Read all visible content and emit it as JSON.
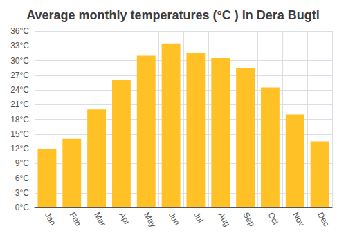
{
  "chart_data": {
    "type": "bar",
    "title": "Average monthly temperatures (°C ) in Dera Bugti",
    "categories": [
      "Jan",
      "Feb",
      "Mar",
      "Apr",
      "May",
      "Jun",
      "Jul",
      "Aug",
      "Sep",
      "Oct",
      "Nov",
      "Dec"
    ],
    "values": [
      12,
      14,
      20,
      26,
      31,
      33.5,
      31.5,
      30.5,
      28.5,
      24.5,
      19,
      13.5
    ],
    "color": "#FFC125",
    "ylim": [
      0,
      36
    ],
    "yticks": [
      {
        "value": 0,
        "label": "0°C"
      },
      {
        "value": 3,
        "label": "3°C"
      },
      {
        "value": 6,
        "label": "6°C"
      },
      {
        "value": 9,
        "label": "9°C"
      },
      {
        "value": 12,
        "label": "12°C"
      },
      {
        "value": 15,
        "label": "15°C"
      },
      {
        "value": 18,
        "label": "18°C"
      },
      {
        "value": 21,
        "label": "21°C"
      },
      {
        "value": 24,
        "label": "24°C"
      },
      {
        "value": 27,
        "label": "27°C"
      },
      {
        "value": 30,
        "label": "30°C"
      },
      {
        "value": 33,
        "label": "33°C"
      },
      {
        "value": 36,
        "label": "36°C"
      }
    ],
    "grid": true
  }
}
